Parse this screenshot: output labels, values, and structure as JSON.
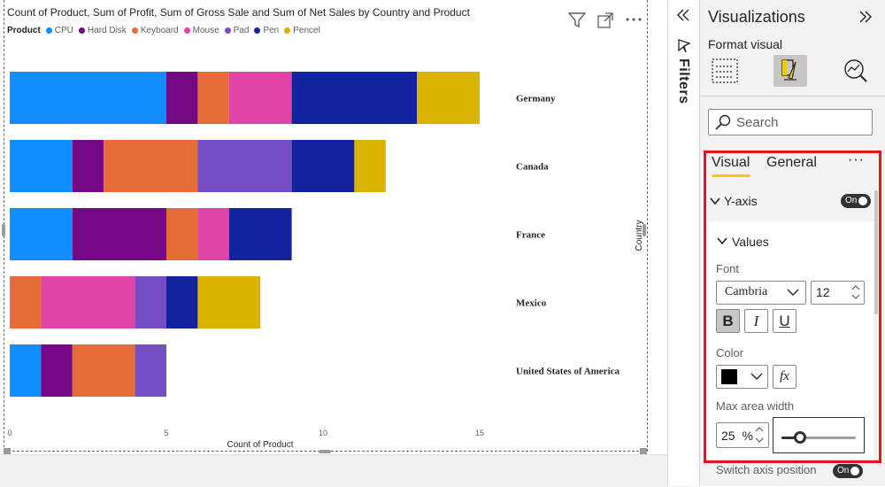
{
  "chart_data": {
    "type": "bar",
    "orientation": "horizontal",
    "stacked": true,
    "title": "Count of Product, Sum of Profit, Sum of Gross Sale and Sum of Net Sales by Country and Product",
    "legend_title": "Product",
    "categories": [
      "Germany",
      "Canada",
      "France",
      "Mexico",
      "United States of America"
    ],
    "series": [
      {
        "name": "CPU",
        "color": "#118dff",
        "values": [
          5,
          2,
          2,
          0,
          1
        ]
      },
      {
        "name": "Hard Disk",
        "color": "#750985",
        "values": [
          1,
          1,
          3,
          0,
          1
        ]
      },
      {
        "name": "Keyboard",
        "color": "#e66c37",
        "values": [
          1,
          3,
          1,
          1,
          2
        ]
      },
      {
        "name": "Mouse",
        "color": "#e044a7",
        "values": [
          2,
          0,
          1,
          3,
          0
        ]
      },
      {
        "name": "Pad",
        "color": "#744ec2",
        "values": [
          0,
          3,
          0,
          1,
          1
        ]
      },
      {
        "name": "Pen",
        "color": "#12239e",
        "values": [
          4,
          2,
          2,
          1,
          0
        ]
      },
      {
        "name": "Pencel",
        "color": "#d9b300",
        "values": [
          2,
          1,
          0,
          2,
          0
        ]
      }
    ],
    "xlabel": "Count of Product",
    "ylabel": "Country",
    "xlim": [
      0,
      15
    ],
    "xticks": [
      "0",
      "5",
      "10",
      "15"
    ],
    "yaxis_position": "right"
  },
  "filters_label": "Filters",
  "pane": {
    "title": "Visualizations",
    "subtitle": "Format visual",
    "search_placeholder": "Search",
    "tabs": [
      "Visual",
      "General"
    ],
    "more": "···",
    "section": "Y-axis",
    "toggle_label": "On",
    "subsection": "Values",
    "font_label": "Font",
    "font_family": "Cambria",
    "font_size": "12",
    "bold": "B",
    "italic": "I",
    "underline": "U",
    "color_label": "Color",
    "color_value": "#000000",
    "fx": "fx",
    "max_width_label": "Max area width",
    "max_width_value": "25",
    "max_width_unit": "%",
    "switch_label": "Switch axis position",
    "switch_toggle": "On"
  },
  "slider": {
    "value": 25,
    "min": 0,
    "max": 100
  }
}
